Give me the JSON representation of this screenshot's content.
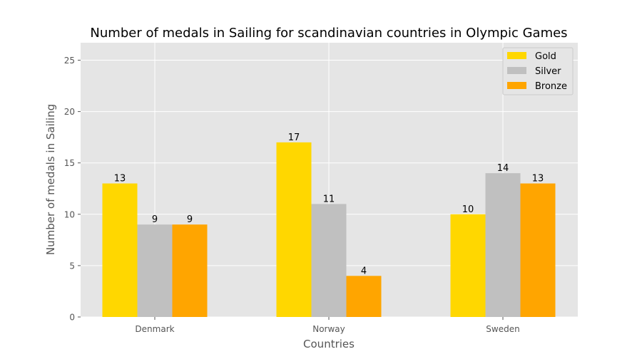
{
  "chart_data": {
    "type": "bar",
    "title": "Number of medals in Sailing for scandinavian countries in Olympic Games",
    "xlabel": "Countries",
    "ylabel": "Number of medals in Sailing",
    "categories": [
      "Denmark",
      "Norway",
      "Sweden"
    ],
    "series": [
      {
        "name": "Gold",
        "color": "#FFD700",
        "values": [
          13,
          17,
          10
        ]
      },
      {
        "name": "Silver",
        "color": "#C0C0C0",
        "values": [
          9,
          11,
          14
        ]
      },
      {
        "name": "Bronze",
        "color": "#FFA500",
        "values": [
          9,
          4,
          13
        ]
      }
    ],
    "ylim": [
      0,
      26.7
    ],
    "yticks": [
      0,
      5,
      10,
      15,
      20,
      25
    ],
    "grid": true,
    "legend_position": "top-right",
    "background": "#E5E5E5"
  }
}
